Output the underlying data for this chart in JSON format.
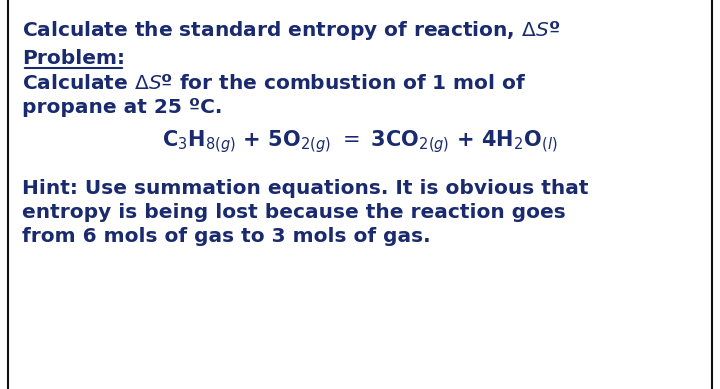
{
  "bg_color": "#ffffff",
  "border_color": "#111111",
  "text_color": "#1a2a6e",
  "title": "Calculate the standard entropy of reaction, Δ$S$º",
  "problem_label": "Problem:",
  "calc_line1": "Calculate Δ$S$º for the combustion of 1 mol of",
  "calc_line2": "propane at 25 ºC.",
  "hint_line1": "Hint: Use summation equations. It is obvious that",
  "hint_line2": "entropy is being lost because the reaction goes",
  "hint_line3": "from 6 mols of gas to 3 mols of gas.",
  "body_fontsize": 14.5,
  "eq_fontsize": 14.5
}
